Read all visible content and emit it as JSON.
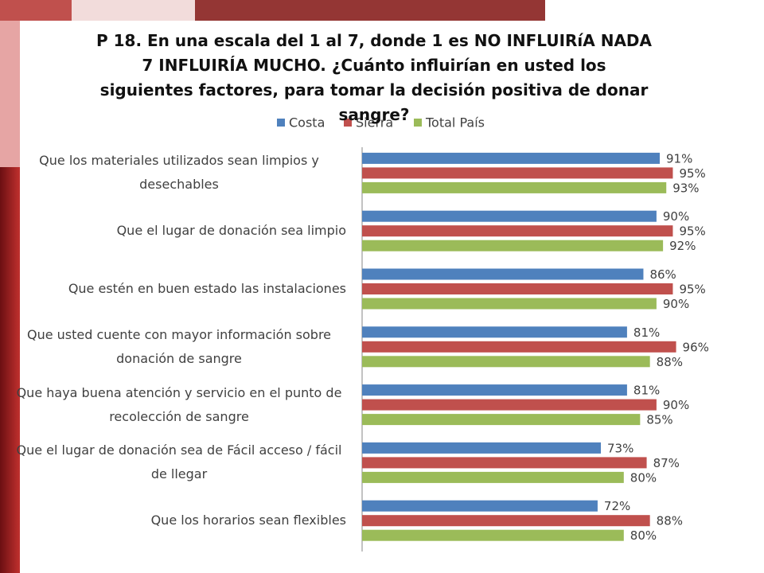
{
  "chart_data": {
    "type": "hbar",
    "title": "P 18. En una escala del 1 al 7, donde 1 es NO INFLUIRíA NADA 7 INFLUIRÍA MUCHO. ¿Cuánto influirían en usted los siguientes factores, para tomar la decisión positiva de donar sangre?",
    "categories": [
      "Que los materiales utilizados sean limpios y desechables",
      "Que el lugar de donación sea limpio",
      "Que estén en buen estado las instalaciones",
      "Que usted cuente con mayor información sobre donación de sangre",
      "Que haya buena atención y servicio en el punto de recolección de sangre",
      "Que el lugar de donación sea de Fácil acceso / fácil de llegar",
      "Que los horarios sean flexibles"
    ],
    "series": [
      {
        "name": "Costa",
        "color": "#4f81bd",
        "values": [
          91,
          90,
          86,
          81,
          81,
          73,
          72
        ],
        "value_labels": [
          "91%",
          "90%",
          "86%",
          "81%",
          "81%",
          "73%",
          "72%"
        ]
      },
      {
        "name": "Sierra",
        "color": "#c0504d",
        "values": [
          95,
          95,
          95,
          96,
          90,
          87,
          88
        ],
        "value_labels": [
          "95%",
          "95%",
          "95%",
          "96%",
          "90%",
          "87%",
          "88%"
        ]
      },
      {
        "name": "Total País",
        "color": "#9bbb59",
        "values": [
          93,
          92,
          90,
          88,
          85,
          80,
          80
        ],
        "value_labels": [
          "93%",
          "92%",
          "90%",
          "88%",
          "85%",
          "80%",
          "80%"
        ]
      }
    ],
    "xlim": [
      0,
      100
    ],
    "legend": "top"
  }
}
